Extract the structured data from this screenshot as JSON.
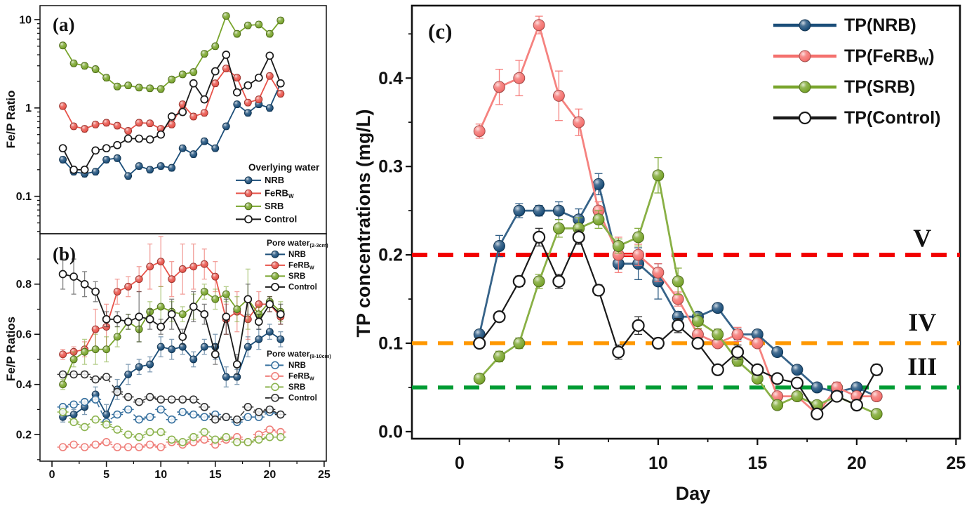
{
  "figure": {
    "background": "#ffffff"
  },
  "days": [
    1,
    2,
    3,
    4,
    5,
    6,
    7,
    8,
    9,
    10,
    11,
    12,
    13,
    14,
    15,
    16,
    17,
    18,
    19,
    20,
    21
  ],
  "chart_data": [
    {
      "id": "a",
      "type": "line",
      "panel_label": "(a)",
      "ylabel": "Fe/P Ratio",
      "yscale": "log",
      "xlim": [
        -1.1,
        25.2
      ],
      "ylim": [
        0.0377,
        14.4
      ],
      "xticks": {
        "major": [],
        "minor": [],
        "labels": []
      },
      "yticks": {
        "major": [
          0.1,
          1,
          10
        ],
        "labels": [
          "0.1",
          "1",
          "10"
        ],
        "log_minors": true
      },
      "legend_title": "Overlying water",
      "series": [
        {
          "name": "NRB",
          "color": "#1b4e79",
          "marker": "ball",
          "line": "solid",
          "rel_err": 0.08,
          "values": [
            0.26,
            0.19,
            0.18,
            0.19,
            0.26,
            0.27,
            0.17,
            0.22,
            0.2,
            0.22,
            0.21,
            0.35,
            0.3,
            0.42,
            0.35,
            0.62,
            1.1,
            0.88,
            1.1,
            1.0,
            1.9
          ]
        },
        {
          "name": "FeRB_{W}",
          "color": "#e8534a",
          "marker": "ball",
          "line": "solid",
          "rel_err": 0.08,
          "values": [
            1.05,
            0.62,
            0.58,
            0.65,
            0.68,
            0.63,
            0.55,
            0.68,
            0.67,
            0.58,
            0.65,
            1.1,
            0.8,
            0.88,
            1.9,
            2.8,
            2.2,
            1.15,
            1.25,
            2.3,
            1.45
          ]
        },
        {
          "name": "SRB",
          "color": "#79a52c",
          "marker": "ball",
          "line": "solid",
          "rel_err": 0.08,
          "values": [
            5.1,
            3.2,
            3.0,
            2.75,
            2.2,
            1.75,
            1.8,
            1.7,
            1.67,
            1.64,
            2.1,
            2.4,
            2.55,
            4.1,
            5.0,
            11.0,
            6.9,
            8.6,
            8.8,
            6.9,
            9.8
          ]
        },
        {
          "name": "Control",
          "color": "#1a1a1a",
          "marker": "open",
          "line": "solid",
          "rel_err": 0.08,
          "values": [
            0.35,
            0.2,
            0.2,
            0.33,
            0.35,
            0.38,
            0.45,
            0.45,
            0.44,
            0.5,
            0.8,
            0.9,
            1.9,
            1.25,
            2.6,
            4.0,
            1.5,
            1.8,
            2.2,
            3.9,
            1.9
          ]
        }
      ]
    },
    {
      "id": "b",
      "type": "line",
      "panel_label": "(b)",
      "ylabel": "Fe/P Ratios",
      "yscale": "linear",
      "xlim": [
        -1.1,
        25.2
      ],
      "ylim": [
        0.094,
        1.001
      ],
      "xticks": {
        "major": [
          0,
          5,
          10,
          15,
          20,
          25
        ],
        "minor": [
          2.5,
          7.5,
          12.5,
          17.5,
          22.5
        ],
        "labels": [
          "0",
          "5",
          "10",
          "15",
          "20",
          "25"
        ]
      },
      "yticks": {
        "major": [
          0.2,
          0.4,
          0.6,
          0.8
        ],
        "labels": [
          "0.2",
          "0.4",
          "0.6",
          "0.8"
        ],
        "minor": [
          0.1,
          0.3,
          0.5,
          0.7,
          0.9
        ]
      },
      "legend2_titles": [
        "Pore water_{(2-3cm)}",
        "Pore water_{(8-10cm)}"
      ],
      "series": [
        {
          "name": "NRB",
          "color": "#1b4e79",
          "marker": "ball",
          "line": "solid",
          "values": [
            0.27,
            0.28,
            0.31,
            0.36,
            0.28,
            0.38,
            0.44,
            0.47,
            0.48,
            0.55,
            0.54,
            0.55,
            0.5,
            0.55,
            0.55,
            0.43,
            0.43,
            0.55,
            0.58,
            0.61,
            0.58
          ],
          "errs": [
            0.02,
            0.02,
            0.03,
            0.03,
            0.04,
            0.04,
            0.04,
            0.03,
            0.03,
            0.04,
            0.04,
            0.03,
            0.03,
            0.03,
            0.05,
            0.04,
            0.03,
            0.04,
            0.04,
            0.03,
            0.03
          ]
        },
        {
          "name": "FeRB_{W}",
          "color": "#e8534a",
          "marker": "ball",
          "line": "solid",
          "values": [
            0.52,
            0.53,
            0.54,
            0.62,
            0.63,
            0.77,
            0.79,
            0.82,
            0.87,
            0.89,
            0.82,
            0.86,
            0.87,
            0.88,
            0.83,
            0.66,
            0.69,
            0.66,
            0.72,
            0.72,
            0.67
          ],
          "errs": [
            0.02,
            0.02,
            0.03,
            0.08,
            0.09,
            0.05,
            0.04,
            0.05,
            0.09,
            0.1,
            0.07,
            0.1,
            0.09,
            0.06,
            0.06,
            0.06,
            0.08,
            0.08,
            0.05,
            0.03,
            0.03
          ]
        },
        {
          "name": "SRB",
          "color": "#79a52c",
          "marker": "ball",
          "line": "solid",
          "values": [
            0.4,
            0.5,
            0.53,
            0.54,
            0.54,
            0.59,
            0.65,
            0.62,
            0.69,
            0.71,
            0.69,
            0.68,
            0.71,
            0.77,
            0.74,
            0.76,
            0.7,
            0.74,
            0.68,
            0.73,
            0.69
          ],
          "errs": [
            0.02,
            0.03,
            0.05,
            0.06,
            0.05,
            0.04,
            0.03,
            0.05,
            0.04,
            0.08,
            0.04,
            0.03,
            0.05,
            0.03,
            0.04,
            0.03,
            0.05,
            0.12,
            0.03,
            0.02,
            0.04
          ]
        },
        {
          "name": "Control",
          "color": "#1a1a1a",
          "marker": "open",
          "line": "solid",
          "values": [
            0.84,
            0.83,
            0.8,
            0.77,
            0.66,
            0.66,
            0.65,
            0.67,
            0.66,
            0.63,
            0.68,
            0.59,
            0.71,
            0.68,
            0.52,
            0.67,
            0.48,
            0.74,
            0.65,
            0.72,
            0.68
          ],
          "errs": [
            0.06,
            0.07,
            0.05,
            0.04,
            0.03,
            0.03,
            0.03,
            0.1,
            0.04,
            0.03,
            0.06,
            0.03,
            0.06,
            0.04,
            0.04,
            0.07,
            0.04,
            0.06,
            0.03,
            0.03,
            0.04
          ]
        },
        {
          "name": "NRB",
          "color": "#38719f",
          "marker": "openbar",
          "line": "dashed",
          "err": 0.012,
          "values": [
            0.31,
            0.32,
            0.33,
            0.34,
            0.25,
            0.28,
            0.3,
            0.26,
            0.27,
            0.3,
            0.26,
            0.29,
            0.28,
            0.27,
            0.28,
            0.27,
            0.25,
            0.27,
            0.27,
            0.29,
            0.28
          ]
        },
        {
          "name": "FeRB_{W}",
          "color": "#ef7f7a",
          "marker": "openbar",
          "line": "dashed",
          "err": 0.012,
          "values": [
            0.15,
            0.16,
            0.15,
            0.16,
            0.17,
            0.15,
            0.15,
            0.15,
            0.16,
            0.15,
            0.17,
            0.16,
            0.17,
            0.18,
            0.16,
            0.18,
            0.19,
            0.17,
            0.2,
            0.22,
            0.21
          ]
        },
        {
          "name": "SRB",
          "color": "#8db450",
          "marker": "openbar",
          "line": "dashed",
          "err": 0.012,
          "values": [
            0.29,
            0.25,
            0.23,
            0.26,
            0.24,
            0.22,
            0.2,
            0.19,
            0.21,
            0.21,
            0.18,
            0.17,
            0.19,
            0.21,
            0.18,
            0.19,
            0.17,
            0.17,
            0.18,
            0.19,
            0.19
          ]
        },
        {
          "name": "Control",
          "color": "#333333",
          "marker": "openbar",
          "line": "dashed",
          "err": 0.012,
          "values": [
            0.44,
            0.44,
            0.44,
            0.42,
            0.43,
            0.37,
            0.35,
            0.33,
            0.35,
            0.34,
            0.34,
            0.34,
            0.34,
            0.31,
            0.26,
            0.27,
            0.26,
            0.31,
            0.29,
            0.3,
            0.28
          ]
        }
      ]
    },
    {
      "id": "c",
      "type": "line",
      "panel_label": "(c)",
      "xlabel": "Day",
      "ylabel": "TP concentrations (mg/L)",
      "yscale": "linear",
      "xlim": [
        -2.4,
        25.2
      ],
      "ylim": [
        -0.008,
        0.482
      ],
      "xticks": {
        "major": [
          0,
          5,
          10,
          15,
          20,
          25
        ],
        "minor": [
          2.5,
          7.5,
          12.5,
          17.5,
          22.5
        ],
        "labels": [
          "0",
          "5",
          "10",
          "15",
          "20",
          "25"
        ]
      },
      "yticks": {
        "major": [
          0.0,
          0.1,
          0.2,
          0.3,
          0.4
        ],
        "labels": [
          "0.0",
          "0.1",
          "0.2",
          "0.3",
          "0.4"
        ],
        "minor": [
          0.05,
          0.15,
          0.25,
          0.35,
          0.45
        ]
      },
      "ref_lines": [
        {
          "value": 0.2,
          "label": "V",
          "color": "#f20000"
        },
        {
          "value": 0.1,
          "label": "IV",
          "color": "#ff9800"
        },
        {
          "value": 0.05,
          "label": "III",
          "color": "#009b33"
        }
      ],
      "ref_label_day": 23.3,
      "series": [
        {
          "name": "TP(NRB)",
          "color": "#1b4e79",
          "marker": "ball",
          "line": "solid",
          "values": [
            0.11,
            0.21,
            0.25,
            0.25,
            0.25,
            0.24,
            0.28,
            0.19,
            0.19,
            0.17,
            0.13,
            0.13,
            0.14,
            0.11,
            0.11,
            0.09,
            0.07,
            0.05,
            0.045,
            0.05,
            0.04
          ],
          "errs": [
            0.005,
            0.012,
            0.008,
            0.006,
            0.01,
            0.012,
            0.012,
            0.006,
            0.018,
            0.02,
            0.006,
            0.005,
            0.005,
            0.006,
            0.005,
            0.004,
            0.004,
            0.004,
            0.004,
            0.004,
            0.004
          ]
        },
        {
          "name": "TP(FeRB_{W})",
          "color": "#f4716e",
          "marker": "ball",
          "line": "solid",
          "values": [
            0.34,
            0.39,
            0.4,
            0.46,
            0.38,
            0.35,
            0.25,
            0.2,
            0.2,
            0.18,
            0.15,
            0.11,
            0.1,
            0.11,
            0.1,
            0.04,
            0.04,
            0.02,
            0.05,
            0.04,
            0.04
          ],
          "errs": [
            0.008,
            0.02,
            0.02,
            0.01,
            0.028,
            0.015,
            0.01,
            0.02,
            0.012,
            0.01,
            0.008,
            0.006,
            0.005,
            0.008,
            0.005,
            0.004,
            0.004,
            0.004,
            0.006,
            0.004,
            0.004
          ]
        },
        {
          "name": "TP(SRB)",
          "color": "#79a52c",
          "marker": "ball",
          "line": "solid",
          "values": [
            0.06,
            0.085,
            0.1,
            0.17,
            0.23,
            0.23,
            0.24,
            0.21,
            0.22,
            0.29,
            0.17,
            0.125,
            0.11,
            0.08,
            0.06,
            0.03,
            0.04,
            0.03,
            0.04,
            0.03,
            0.02
          ],
          "errs": [
            0.004,
            0.006,
            0.006,
            0.008,
            0.01,
            0.012,
            0.01,
            0.008,
            0.01,
            0.02,
            0.015,
            0.008,
            0.006,
            0.006,
            0.005,
            0.004,
            0.005,
            0.004,
            0.005,
            0.004,
            0.004
          ]
        },
        {
          "name": "TP(Control)",
          "color": "#1a1a1a",
          "marker": "open",
          "line": "solid",
          "values": [
            0.1,
            0.13,
            0.17,
            0.22,
            0.17,
            0.22,
            0.16,
            0.09,
            0.12,
            0.1,
            0.12,
            0.1,
            0.07,
            0.09,
            0.07,
            0.06,
            0.055,
            0.02,
            0.04,
            0.03,
            0.07
          ],
          "errs": [
            0.004,
            0.005,
            0.006,
            0.01,
            0.008,
            0.008,
            0.006,
            0.008,
            0.01,
            0.006,
            0.008,
            0.005,
            0.005,
            0.008,
            0.005,
            0.004,
            0.004,
            0.004,
            0.004,
            0.004,
            0.006
          ]
        }
      ]
    }
  ]
}
